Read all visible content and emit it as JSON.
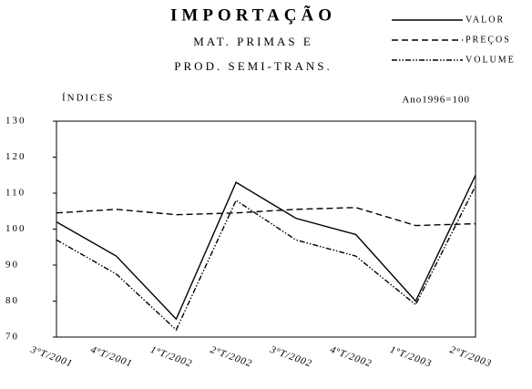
{
  "chart_data": {
    "type": "line",
    "title": "IMPORTAÇÃO",
    "subtitle": [
      "MAT. PRIMAS E",
      "PROD. SEMI-TRANS."
    ],
    "y_axis_label": "ÍNDICES",
    "annotation": "Ano1996=100",
    "categories": [
      "3ºT/2001",
      "4ºT/2001",
      "1ºT/2002",
      "2ºT/2002",
      "3ºT/2002",
      "4ºT/2002",
      "1ºT/2003",
      "2ºT/2003"
    ],
    "series": [
      {
        "name": "VALOR",
        "color": "#000000",
        "dash": "solid",
        "values": [
          102,
          92.5,
          75,
          113,
          103,
          98.5,
          80,
          115
        ]
      },
      {
        "name": "PREÇOS",
        "color": "#000000",
        "dash": "dashed",
        "values": [
          104.5,
          105.5,
          104,
          104.5,
          105.5,
          106,
          101,
          101.5
        ]
      },
      {
        "name": "VOLUME",
        "color": "#000000",
        "dash": "dashdotdot",
        "values": [
          97,
          87.5,
          72,
          108,
          97,
          92.5,
          79,
          112
        ]
      }
    ],
    "ylim": [
      70,
      130
    ],
    "yticks": [
      70,
      80,
      90,
      100,
      110,
      120,
      130
    ],
    "grid": false,
    "legend": "top-right"
  }
}
